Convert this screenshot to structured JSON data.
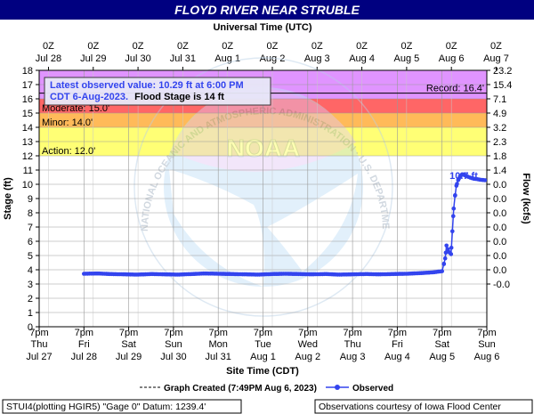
{
  "title": "FLOYD RIVER NEAR STRUBLE",
  "top_axis_title": "Universal Time (UTC)",
  "top_ticks": [
    {
      "l1": "0Z",
      "l2": "Jul 28"
    },
    {
      "l1": "0Z",
      "l2": "Jul 29"
    },
    {
      "l1": "0Z",
      "l2": "Jul 30"
    },
    {
      "l1": "0Z",
      "l2": "Jul 31"
    },
    {
      "l1": "0Z",
      "l2": "Aug 1"
    },
    {
      "l1": "0Z",
      "l2": "Aug 2"
    },
    {
      "l1": "0Z",
      "l2": "Aug 3"
    },
    {
      "l1": "0Z",
      "l2": "Aug 4"
    },
    {
      "l1": "0Z",
      "l2": "Aug 5"
    },
    {
      "l1": "0Z",
      "l2": "Aug 6"
    },
    {
      "l1": "0Z",
      "l2": "Aug 7"
    }
  ],
  "bottom_ticks": [
    {
      "l1": "7pm",
      "l2": "Thu",
      "l3": "Jul 27"
    },
    {
      "l1": "7pm",
      "l2": "Fri",
      "l3": "Jul 28"
    },
    {
      "l1": "7pm",
      "l2": "Sat",
      "l3": "Jul 29"
    },
    {
      "l1": "7pm",
      "l2": "Sun",
      "l3": "Jul 30"
    },
    {
      "l1": "7pm",
      "l2": "Mon",
      "l3": "Jul 31"
    },
    {
      "l1": "7pm",
      "l2": "Tue",
      "l3": "Aug 1"
    },
    {
      "l1": "7pm",
      "l2": "Wed",
      "l3": "Aug 2"
    },
    {
      "l1": "7pm",
      "l2": "Thu",
      "l3": "Aug 3"
    },
    {
      "l1": "7pm",
      "l2": "Fri",
      "l3": "Aug 4"
    },
    {
      "l1": "7pm",
      "l2": "Sat",
      "l3": "Aug 5"
    },
    {
      "l1": "7pm",
      "l2": "Sun",
      "l3": "Aug 6"
    }
  ],
  "bottom_axis_title": "Site Time (CDT)",
  "left_axis_title": "Stage (ft)",
  "right_axis_title": "Flow (kcfs)",
  "left_ticks": [
    0,
    1,
    2,
    3,
    4,
    5,
    6,
    7,
    8,
    9,
    10,
    11,
    12,
    13,
    14,
    15,
    16,
    17,
    18
  ],
  "right_ticks": [
    {
      "stage": 3,
      "label": "-0.0"
    },
    {
      "stage": 4,
      "label": "0.0"
    },
    {
      "stage": 5,
      "label": "0.0"
    },
    {
      "stage": 6,
      "label": "0.0"
    },
    {
      "stage": 7,
      "label": "0.0"
    },
    {
      "stage": 8,
      "label": "0.0"
    },
    {
      "stage": 9,
      "label": "0.0"
    },
    {
      "stage": 10,
      "label": "0.0"
    },
    {
      "stage": 11,
      "label": "1.4"
    },
    {
      "stage": 12,
      "label": "1.8"
    },
    {
      "stage": 13,
      "label": "2.3"
    },
    {
      "stage": 14,
      "label": "3.2"
    },
    {
      "stage": 15,
      "label": "4.9"
    },
    {
      "stage": 16,
      "label": "7.1"
    },
    {
      "stage": 17,
      "label": "15.4"
    },
    {
      "stage": 18,
      "label": "23.2"
    }
  ],
  "bands": [
    {
      "name": "Action",
      "from": 12,
      "to": 14,
      "color": "#ffff66",
      "label": "Action: 12.0'"
    },
    {
      "name": "Minor",
      "from": 14,
      "to": 15,
      "color": "#ffb347",
      "label": "Minor: 14.0'"
    },
    {
      "name": "Moderate",
      "from": 15,
      "to": 16,
      "color": "#ff5555",
      "label": "Moderate: 15.0'"
    },
    {
      "name": "Major",
      "from": 16,
      "to": 18,
      "color": "#dd88ff",
      "label": ""
    }
  ],
  "record": {
    "value": 16.4,
    "label": "Record: 16.4'"
  },
  "info_box": {
    "line1": "Latest observed value: 10.29 ft at 6:00 PM",
    "line2_a": "CDT 6-Aug-2023.",
    "line2_b": "Flood Stage is 14 ft"
  },
  "peak_label": "10.7 ft",
  "watermark": {
    "text": "NOAA",
    "ring_text": "NATIONAL OCEANIC AND ATMOSPHERIC ADMINISTRATION · U.S. DEPARTMENT OF COMMERCE"
  },
  "legend": {
    "created": "Graph Created (7:49PM Aug 6, 2023)",
    "observed": "Observed"
  },
  "footer_left": "STUI4(plotting HGIR5) \"Gage 0\" Datum: 1239.4'",
  "footer_right": "Observations courtesy of Iowa Flood Center",
  "colors": {
    "title_bg": "#000080",
    "observed": "#3344ee",
    "grid": "#9a9a9a"
  },
  "chart_data": {
    "type": "line",
    "title": "FLOYD RIVER NEAR STRUBLE",
    "xlabel": "Site Time (CDT)",
    "ylabel": "Stage (ft)",
    "y2label": "Flow (kcfs)",
    "ylim": [
      0,
      18
    ],
    "x_range_days_from_jul27_7pm": [
      0,
      10
    ],
    "series": [
      {
        "name": "Observed",
        "x_days": [
          1.0,
          1.3,
          1.6,
          1.9,
          2.2,
          2.5,
          2.8,
          3.1,
          3.4,
          3.7,
          4.0,
          4.3,
          4.6,
          4.9,
          5.2,
          5.5,
          5.8,
          6.1,
          6.4,
          6.7,
          7.0,
          7.3,
          7.6,
          7.9,
          8.2,
          8.5,
          8.8,
          9.0,
          9.04,
          9.07,
          9.1,
          9.13,
          9.17,
          9.2,
          9.23,
          9.26,
          9.29,
          9.32,
          9.36,
          9.4,
          9.45,
          9.52,
          9.6,
          9.7,
          9.8,
          9.9,
          9.96
        ],
        "values": [
          3.72,
          3.74,
          3.7,
          3.68,
          3.66,
          3.7,
          3.68,
          3.66,
          3.7,
          3.74,
          3.72,
          3.7,
          3.68,
          3.66,
          3.7,
          3.72,
          3.7,
          3.68,
          3.7,
          3.66,
          3.68,
          3.7,
          3.68,
          3.7,
          3.72,
          3.76,
          3.82,
          3.9,
          4.4,
          4.8,
          5.7,
          5.4,
          5.2,
          5.1,
          6.7,
          8.3,
          9.2,
          9.9,
          10.3,
          10.55,
          10.7,
          10.62,
          10.5,
          10.4,
          10.35,
          10.3,
          10.29
        ]
      }
    ]
  }
}
